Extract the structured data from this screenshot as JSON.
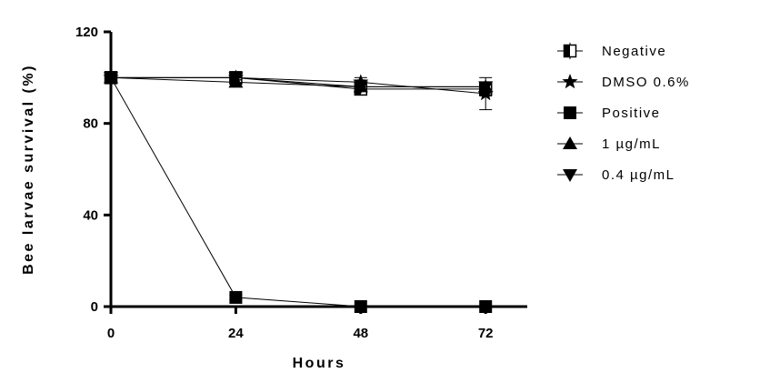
{
  "chart_data": {
    "type": "line",
    "title": "",
    "xlabel": "Hours",
    "ylabel": "Bee larvae survival (%)",
    "x": [
      0,
      24,
      48,
      72
    ],
    "x_tick_labels": [
      "0",
      "24",
      "48",
      "72"
    ],
    "y_tick_labels": [
      "0",
      "40",
      "80",
      "120"
    ],
    "y_ticks": [
      0,
      40,
      80,
      120
    ],
    "xlim": [
      0,
      80
    ],
    "ylim": [
      0,
      120
    ],
    "grid": false,
    "legend_position": "right",
    "series": [
      {
        "name": "Negative",
        "marker": "half-filled-square",
        "values": [
          100,
          100,
          95,
          95
        ],
        "errors": [
          0,
          2,
          2,
          3
        ]
      },
      {
        "name": "DMSO 0.6%",
        "marker": "star",
        "values": [
          100,
          100,
          98,
          93
        ],
        "errors": [
          0,
          1,
          2,
          7
        ]
      },
      {
        "name": "Positive",
        "marker": "square",
        "values": [
          100,
          4,
          0,
          0
        ],
        "errors": [
          0,
          1,
          0,
          0
        ]
      },
      {
        "name": "1 µg/mL",
        "marker": "triangle-up",
        "values": [
          100,
          98,
          96,
          96
        ],
        "errors": [
          0,
          1,
          2,
          2
        ]
      },
      {
        "name": "0.4 µg/mL",
        "marker": "triangle-down",
        "values": [
          100,
          100,
          96,
          96
        ],
        "errors": [
          0,
          1,
          2,
          2
        ]
      }
    ]
  }
}
